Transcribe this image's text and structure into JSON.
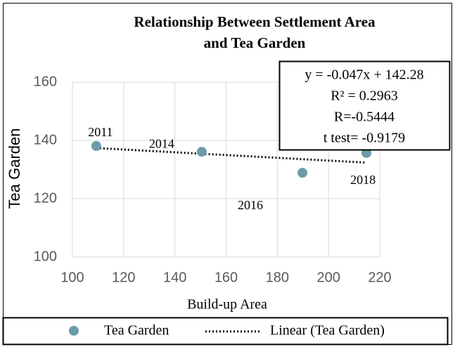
{
  "chart_data": {
    "type": "scatter",
    "title": [
      "Relationship Between Settlement Area",
      "and Tea Garden"
    ],
    "x_label": "Build-up Area",
    "y_label": "Tea Garden",
    "xlim": [
      100,
      220
    ],
    "xticks": [
      100,
      120,
      140,
      160,
      180,
      200,
      220
    ],
    "ylim": [
      100,
      160
    ],
    "yticks": [
      100,
      120,
      140,
      160
    ],
    "grid": true,
    "series": [
      {
        "name": "Tea Garden",
        "color": "#6b9ca8",
        "x": [
          109.3,
          150.5,
          189.8,
          214.8
        ],
        "values": [
          138.1,
          136.1,
          128.9,
          135.7
        ],
        "labels": [
          "2011",
          "2014",
          "2016",
          "2018"
        ]
      }
    ],
    "trendline": {
      "name": "Linear (Tea Garden)",
      "color": "#000000"
    },
    "annotation": [
      "y = -0.047x + 142.28",
      "R² = 0.2963",
      "R=-0.5444",
      "t test= -0.9179"
    ],
    "legend": "bottom"
  }
}
